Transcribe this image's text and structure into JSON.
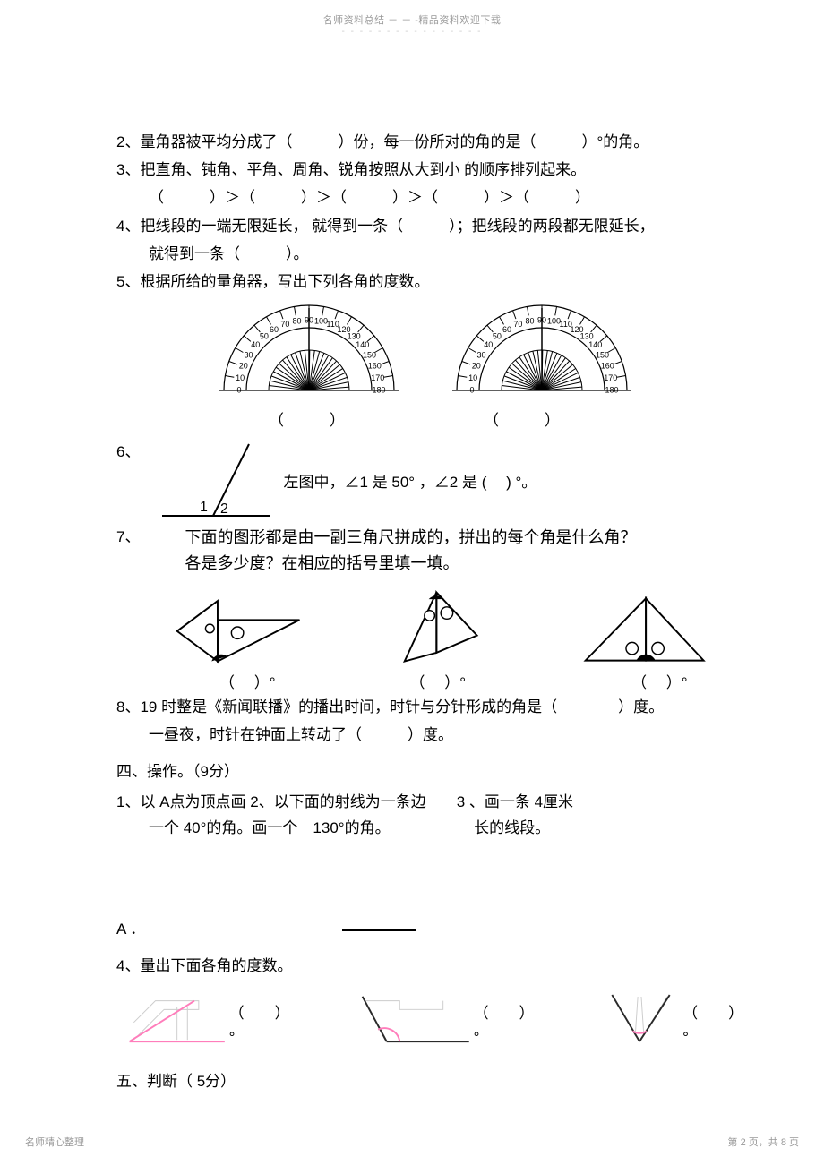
{
  "header": {
    "watermark": "名师资料总结 － － -精品资料欢迎下载",
    "dashes": "- - - - - - - - - - - - - - - -"
  },
  "q2": "2、量角器被平均分成了（　　　）份，每一份所对的角的是（　　　）°的角。",
  "q3": {
    "line": "3、把直角、钝角、平角、周角、锐角按照从大到小   的顺序排列起来。",
    "order": "（　　　）＞（　　　）＞（　　　）＞（　　　）＞（　　　）"
  },
  "q4": {
    "a": "4、把线段的一端无限延长，   就得到一条（　　　）；把线段的两段都无限延长，",
    "b": "就得到一条（　　　）。"
  },
  "q5": {
    "line": "5、根据所给的量角器，写出下列各角的度数。",
    "paren_left": "（　　　）",
    "paren_right": "（　　　）",
    "protractor": {
      "labels": [
        "0",
        "10",
        "20",
        "30",
        "40",
        "50",
        "60",
        "70",
        "80",
        "90",
        "100",
        "110",
        "120",
        "130",
        "140",
        "150",
        "160",
        "170",
        "180"
      ],
      "left_needle_angle_deg": 90,
      "right_needle_angle_deg": 90,
      "outline_color": "#000000",
      "tick_color": "#000000",
      "font_size": 9
    }
  },
  "q6": {
    "num": "6、",
    "text": "左图中，∠1 是 50°  ，∠2 是 (　  ) °。",
    "label1": "1",
    "label2": "2",
    "angle1_deg": 50,
    "line_color": "#000000"
  },
  "q7": {
    "num": "7、",
    "l1": "下面的图形都是由一副三角尺拼成的，拼出的每个角是什么角？",
    "l2": "各是多少度？在相应的括号里填一填。",
    "label": "（　  ）°",
    "shapes_color": "#000000",
    "circle_fill": "#ffffff"
  },
  "q8": {
    "a": "8、19 时整是《新闻联播》的播出时间，时针与分针形成的角是（　　　　）度。",
    "b": "一昼夜，时针在钟面上转动了（　　　）度。"
  },
  "s4": {
    "heading": "四、操作。（9分）",
    "op1": "1、以 A点为顶点画   2、以下面的射线为一条边　　3  、画一条   4厘米",
    "op2": "一个 40°的角。画一个　130°的角。　　　　　　长的线段。",
    "a_dot": "A  ．"
  },
  "q4m": {
    "line": "4、量出下面各角的度数。",
    "label": "（　　）°",
    "angles": {
      "left_deg": 25,
      "mid_deg": 140,
      "right_deg": 35,
      "stroke": "#2a2a2a",
      "pink": "#ff7dbb",
      "hatch": "#cccccc"
    }
  },
  "s5": {
    "heading": "五、判断（ 5分）"
  },
  "footer": {
    "left": "名师精心整理",
    "right": "第 2 页，共 8 页"
  }
}
